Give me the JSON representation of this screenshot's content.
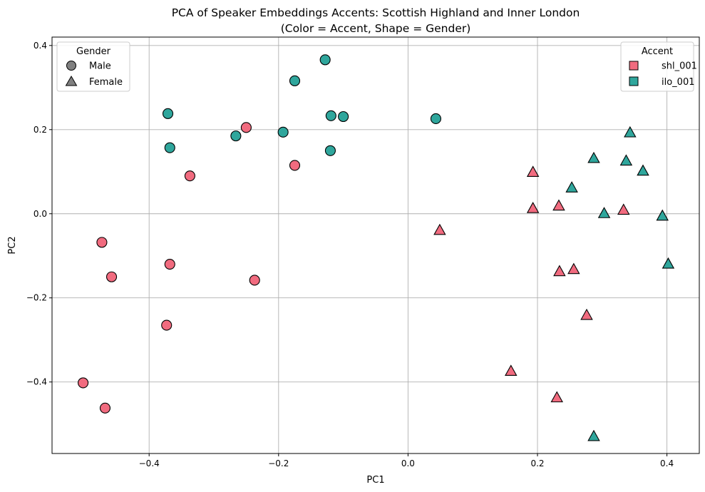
{
  "chart_data": {
    "type": "scatter",
    "title": "PCA of Speaker Embeddings Accents: Scottish Highland and Inner London",
    "subtitle": "(Color = Accent, Shape = Gender)",
    "xlabel": "PC1",
    "ylabel": "PC2",
    "xlim": [
      -0.55,
      0.45
    ],
    "ylim": [
      -0.57,
      0.42
    ],
    "xticks": [
      -0.4,
      -0.2,
      0.0,
      0.2,
      0.4
    ],
    "xtick_labels": [
      "−0.4",
      "−0.2",
      "0.0",
      "0.2",
      "0.4"
    ],
    "yticks": [
      -0.4,
      -0.2,
      0.0,
      0.2,
      0.4
    ],
    "ytick_labels": [
      "−0.4",
      "−0.2",
      "0.0",
      "0.2",
      "0.4"
    ],
    "grid": true,
    "colors": {
      "shl_001": "#f16b7f",
      "ilo_001": "#2fa69c",
      "shape_key": "#808080",
      "edge": "#000000",
      "grid": "#b0b0b0"
    },
    "legends": [
      {
        "title": "Gender",
        "placement": "top-left",
        "entries": [
          {
            "label": "Male",
            "marker": "circle"
          },
          {
            "label": "Female",
            "marker": "triangle"
          }
        ]
      },
      {
        "title": "Accent",
        "placement": "top-right",
        "entries": [
          {
            "label": "shl_001",
            "marker": "square"
          },
          {
            "label": "ilo_001",
            "marker": "square"
          }
        ]
      }
    ],
    "series": [
      {
        "name": "shl_001",
        "gender": "Male",
        "marker": "circle",
        "points": [
          [
            -0.25,
            0.205
          ],
          [
            -0.337,
            0.09
          ],
          [
            -0.175,
            0.115
          ],
          [
            -0.473,
            -0.068
          ],
          [
            -0.458,
            -0.15
          ],
          [
            -0.368,
            -0.12
          ],
          [
            -0.237,
            -0.158
          ],
          [
            -0.373,
            -0.265
          ],
          [
            -0.502,
            -0.402
          ],
          [
            -0.468,
            -0.462
          ]
        ]
      },
      {
        "name": "ilo_001",
        "gender": "Male",
        "marker": "circle",
        "points": [
          [
            -0.128,
            0.366
          ],
          [
            -0.175,
            0.316
          ],
          [
            -0.371,
            0.238
          ],
          [
            -0.368,
            0.157
          ],
          [
            -0.266,
            0.185
          ],
          [
            -0.193,
            0.194
          ],
          [
            -0.119,
            0.233
          ],
          [
            -0.1,
            0.231
          ],
          [
            -0.12,
            0.15
          ],
          [
            0.043,
            0.226
          ]
        ]
      },
      {
        "name": "shl_001",
        "gender": "Female",
        "marker": "triangle",
        "points": [
          [
            0.193,
            0.098
          ],
          [
            0.193,
            0.012
          ],
          [
            0.233,
            0.018
          ],
          [
            0.333,
            0.008
          ],
          [
            0.049,
            -0.04
          ],
          [
            0.234,
            -0.138
          ],
          [
            0.256,
            -0.133
          ],
          [
            0.276,
            -0.242
          ],
          [
            0.159,
            -0.375
          ],
          [
            0.23,
            -0.438
          ]
        ]
      },
      {
        "name": "ilo_001",
        "gender": "Female",
        "marker": "triangle",
        "points": [
          [
            0.343,
            0.192
          ],
          [
            0.287,
            0.131
          ],
          [
            0.337,
            0.125
          ],
          [
            0.363,
            0.101
          ],
          [
            0.253,
            0.061
          ],
          [
            0.303,
            0.0
          ],
          [
            0.393,
            -0.006
          ],
          [
            0.402,
            -0.12
          ],
          [
            0.287,
            -0.53
          ]
        ]
      }
    ]
  }
}
